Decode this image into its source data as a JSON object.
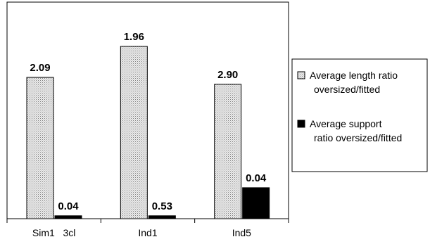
{
  "chart_data": {
    "type": "bar",
    "categories": [
      "Sim1   3cl",
      "Ind1",
      "Ind5"
    ],
    "series": [
      {
        "name": "Average length ratio oversized/fitted",
        "legend_lines": [
          "Average length ratio",
          "oversized/fitted"
        ],
        "color": "#d9d9d9",
        "pattern": "dotted",
        "values": [
          2.09,
          1.96,
          2.9
        ],
        "bar_levels": [
          0.82,
          1.0,
          0.78
        ]
      },
      {
        "name": "Average support ratio oversized/fitted",
        "legend_lines": [
          "Average support",
          "ratio oversized/fitted"
        ],
        "color": "#000000",
        "pattern": "solid",
        "values": [
          0.04,
          0.53,
          0.04
        ],
        "bar_levels": [
          0.017,
          0.017,
          0.18
        ]
      }
    ],
    "data_labels": [
      [
        "2.09",
        "1.96",
        "2.90"
      ],
      [
        "0.04",
        "0.53",
        "0.04"
      ]
    ],
    "grid": false,
    "legend_position": "right",
    "title": "",
    "xlabel": "",
    "ylabel": ""
  }
}
